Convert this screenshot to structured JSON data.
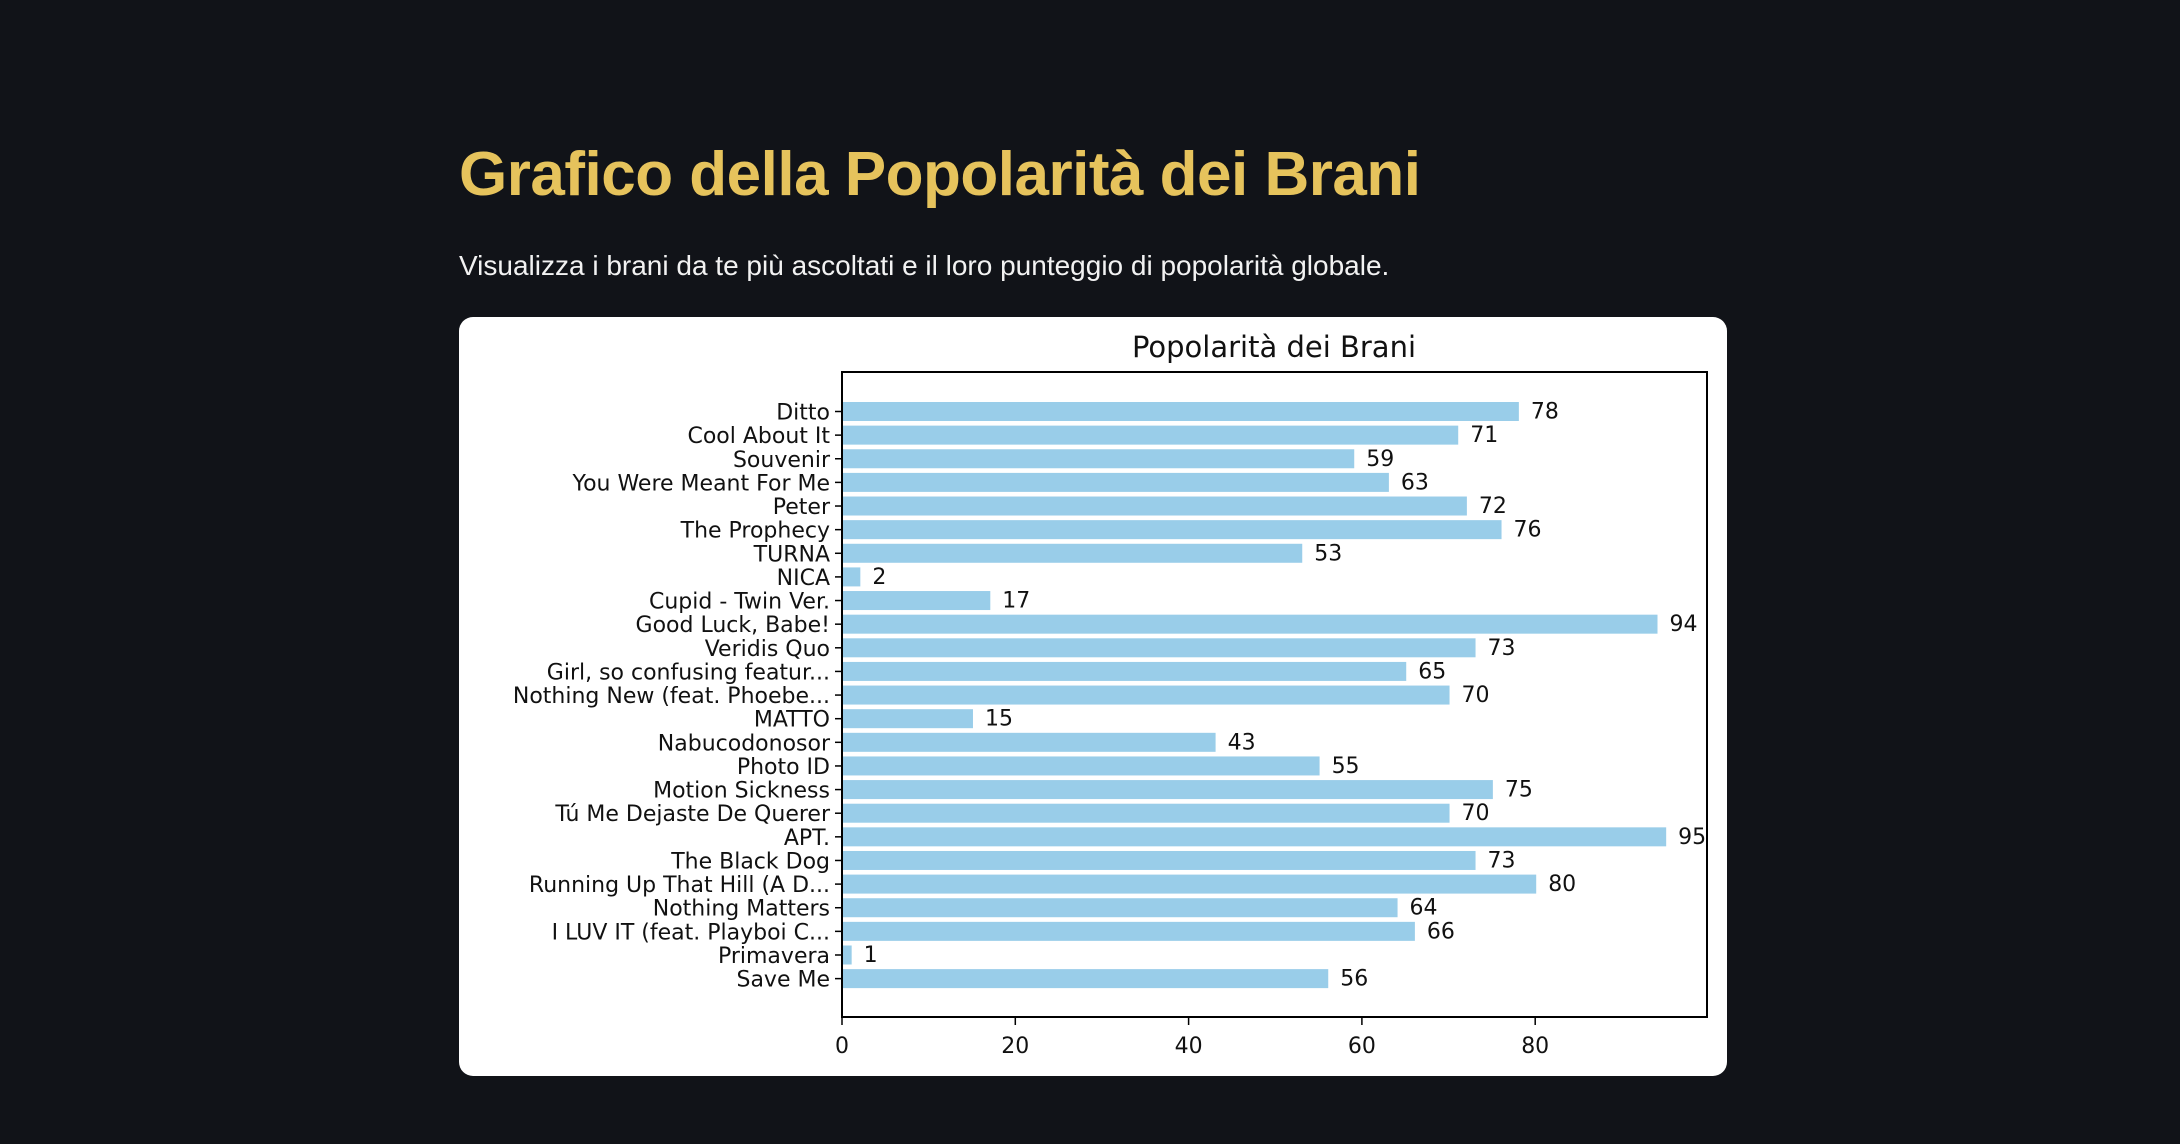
{
  "header": {
    "title": "Grafico della Popolarità dei Brani",
    "subtitle": "Visualizza i brani da te più ascoltati e il loro punteggio di popolarità globale."
  },
  "colors": {
    "background": "#111318",
    "title": "#e6c35c",
    "bar": "#99cde9",
    "card": "#ffffff"
  },
  "chart_data": {
    "type": "bar",
    "orientation": "horizontal",
    "title": "Popolarità dei Brani",
    "xlabel": "",
    "ylabel": "",
    "xlim": [
      0,
      100
    ],
    "xticks": [
      0,
      20,
      40,
      60,
      80
    ],
    "grid": false,
    "legend": "none",
    "categories": [
      "Ditto",
      "Cool About It",
      "Souvenir",
      "You Were Meant For Me",
      "Peter",
      "The Prophecy",
      "TURNA",
      "NICA",
      "Cupid - Twin Ver.",
      "Good Luck, Babe!",
      "Veridis Quo",
      "Girl, so confusing featur...",
      "Nothing New (feat. Phoebe...",
      "MATTO",
      "Nabucodonosor",
      "Photo ID",
      "Motion Sickness",
      "Tú Me Dejaste De Querer",
      "APT.",
      "The Black Dog",
      "Running Up That Hill (A D...",
      "Nothing Matters",
      "I LUV IT (feat. Playboi C...",
      "Primavera",
      "Save Me"
    ],
    "values": [
      78,
      71,
      59,
      63,
      72,
      76,
      53,
      2,
      17,
      94,
      73,
      65,
      70,
      15,
      43,
      55,
      75,
      70,
      95,
      73,
      80,
      64,
      66,
      1,
      56
    ]
  }
}
